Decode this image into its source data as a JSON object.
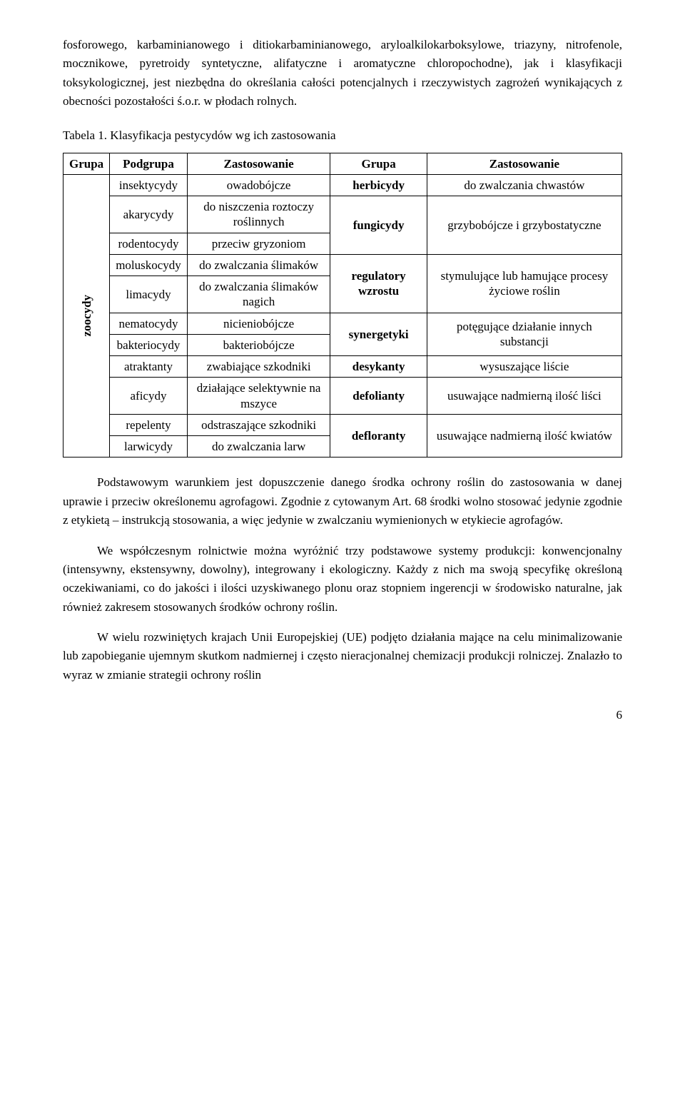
{
  "p1": "fosforowego, karbaminianowego i ditiokarbaminianowego, aryloalkilokarboksylowe, triazyny, nitrofenole, mocznikowe, pyretroidy syntetyczne, alifatyczne i aromatyczne chloropochodne), jak i klasyfikacji toksykologicznej, jest niezbędna do określania całości potencjalnych i rzeczywistych zagrożeń wynikających z obecności pozostałości ś.o.r. w płodach rolnych.",
  "caption": "Tabela 1. Klasyfikacja pestycydów wg ich zastosowania",
  "table": {
    "h_grupa": "Grupa",
    "h_podgrupa": "Podgrupa",
    "h_zast1": "Zastosowanie",
    "h_grupa2": "Grupa",
    "h_zast2": "Zastosowanie",
    "rowlabel": "zoocydy",
    "rows": [
      {
        "podgrupa": "insektycydy",
        "zast": "owadobójcze",
        "grupa": "herbicydy",
        "zast2": "do zwalczania chwastów"
      },
      {
        "podgrupa": "akarycydy",
        "zast": "do niszczenia roztoczy roślinnych",
        "grupa": "fungicydy",
        "zast2": "grzybobójcze i grzybostatyczne"
      },
      {
        "podgrupa": "rodentocydy",
        "zast": "przeciw gryzoniom"
      },
      {
        "podgrupa": "moluskocydy",
        "zast": "do zwalczania ślimaków",
        "grupa": "regulatory wzrostu",
        "zast2": "stymulujące lub hamujące procesy życiowe roślin"
      },
      {
        "podgrupa": "limacydy",
        "zast": "do zwalczania ślimaków nagich"
      },
      {
        "podgrupa": "nematocydy",
        "zast": "nicieniobójcze",
        "grupa": "synergetyki",
        "zast2": "potęgujące działanie innych substancji"
      },
      {
        "podgrupa": "bakteriocydy",
        "zast": "bakteriobójcze"
      },
      {
        "podgrupa": "atraktanty",
        "zast": "zwabiające szkodniki",
        "grupa": "desykanty",
        "zast2": "wysuszające liście"
      },
      {
        "podgrupa": "aficydy",
        "zast": "działające selektywnie na mszyce",
        "grupa": "defolianty",
        "zast2": "usuwające nadmierną ilość liści"
      },
      {
        "podgrupa": "repelenty",
        "zast": "odstraszające szkodniki",
        "grupa": "defloranty",
        "zast2": "usuwające nadmierną ilość kwiatów"
      },
      {
        "podgrupa": "larwicydy",
        "zast": "do zwalczania larw"
      }
    ]
  },
  "p2": "Podstawowym warunkiem jest dopuszczenie danego środka ochrony roślin do zastosowania w danej uprawie i przeciw określonemu agrofagowi. Zgodnie z cytowanym Art. 68 środki wolno stosować jedynie zgodnie z etykietą – instrukcją stosowania, a więc jedynie w zwalczaniu wymienionych w etykiecie agrofagów.",
  "p3": "We współczesnym rolnictwie można wyróżnić trzy podstawowe systemy produkcji: konwencjonalny (intensywny, ekstensywny, dowolny), integrowany i ekologiczny. Każdy z nich ma swoją specyfikę określoną oczekiwaniami, co do jakości i ilości uzyskiwanego plonu oraz stopniem ingerencji w środowisko naturalne, jak również zakresem stosowanych środków ochrony roślin.",
  "p4": "W wielu rozwiniętych krajach Unii Europejskiej (UE) podjęto działania mające na celu minimalizowanie lub zapobieganie ujemnym skutkom nadmiernej i często nieracjonalnej chemizacji produkcji rolniczej. Znalazło to wyraz w zmianie strategii ochrony roślin",
  "pagenum": "6"
}
